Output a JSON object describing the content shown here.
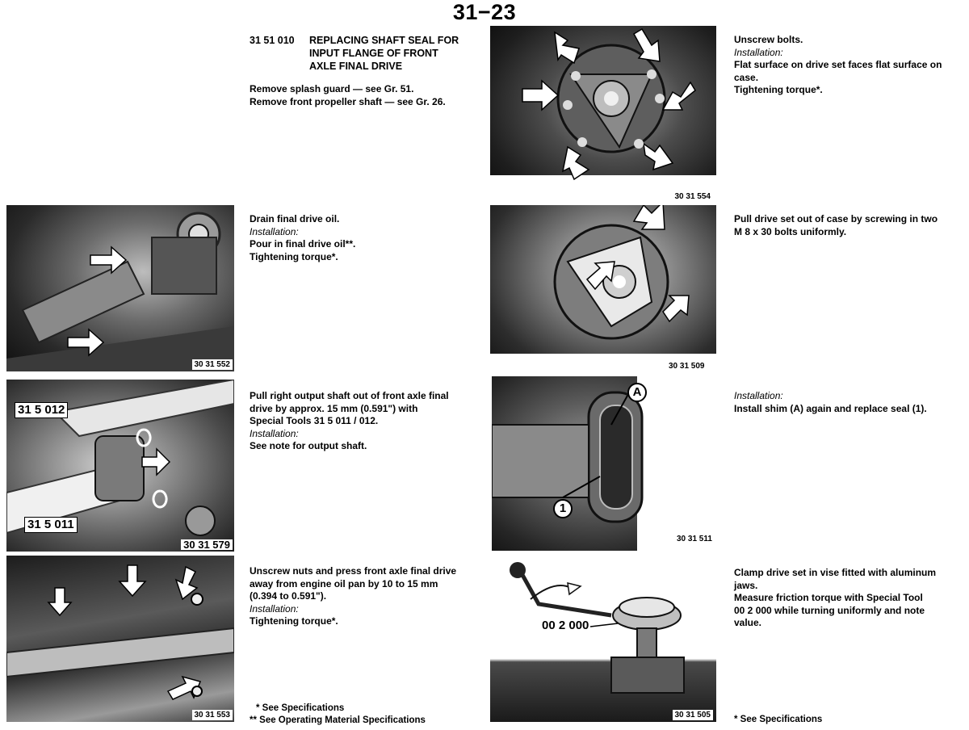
{
  "page_number": "31−23",
  "heading": {
    "code": "31 51 010",
    "title_lines": [
      "REPLACING SHAFT SEAL FOR",
      "INPUT FLANGE OF FRONT",
      "AXLE FINAL DRIVE"
    ]
  },
  "intro": {
    "lines": [
      "Remove splash guard — see Gr. 51.",
      "Remove front propeller shaft — see Gr. 26."
    ]
  },
  "steps_left": [
    {
      "figure": "30 31 552",
      "lines": [
        {
          "text": "Drain final drive oil.",
          "italic": false
        },
        {
          "text": "Installation:",
          "italic": true
        },
        {
          "text": "Pour in final drive oil**.",
          "italic": false
        },
        {
          "text": "Tightening torque*.",
          "italic": false
        }
      ]
    },
    {
      "figure": "30 31 579",
      "callouts": [
        "31 5 012",
        "31 5 011"
      ],
      "lines": [
        {
          "text": "Pull right output shaft out of front axle final",
          "italic": false
        },
        {
          "text": "drive by approx. 15 mm (0.591\") with",
          "italic": false
        },
        {
          "text": "Special Tools 31 5 011 / 012.",
          "italic": false
        },
        {
          "text": "Installation:",
          "italic": true
        },
        {
          "text": "See note for output shaft.",
          "italic": false
        }
      ]
    },
    {
      "figure": "30 31 553",
      "lines": [
        {
          "text": "Unscrew nuts and press front axle final drive",
          "italic": false
        },
        {
          "text": "away from engine oil pan by 10 to 15 mm",
          "italic": false
        },
        {
          "text": "(0.394 to 0.591\").",
          "italic": false
        },
        {
          "text": "Installation:",
          "italic": true
        },
        {
          "text": "Tightening torque*.",
          "italic": false
        }
      ]
    }
  ],
  "steps_right": [
    {
      "figure": "30 31 554",
      "lines": [
        {
          "text": "Unscrew bolts.",
          "italic": false
        },
        {
          "text": "Installation:",
          "italic": true
        },
        {
          "text": "Flat surface on drive set faces flat surface on",
          "italic": false
        },
        {
          "text": "case.",
          "italic": false
        },
        {
          "text": "Tightening torque*.",
          "italic": false
        }
      ]
    },
    {
      "figure": "30 31 509",
      "lines": [
        {
          "text": "Pull drive set out of case by screwing in two",
          "italic": false
        },
        {
          "text": "M 8 x 30 bolts uniformly.",
          "italic": false
        }
      ]
    },
    {
      "figure": "30 31 511",
      "callouts": [
        "A",
        "1"
      ],
      "lines": [
        {
          "text": "Installation:",
          "italic": true
        },
        {
          "text": "Install shim (A) again and replace seal (1).",
          "italic": false
        }
      ]
    },
    {
      "figure": "30 31 505",
      "callouts": [
        "00 2 000"
      ],
      "lines": [
        {
          "text": "Clamp drive set in vise fitted with aluminum",
          "italic": false
        },
        {
          "text": "jaws.",
          "italic": false
        },
        {
          "text": "Measure friction torque with Special Tool",
          "italic": false
        },
        {
          "text": "00 2 000 while turning uniformly and note",
          "italic": false
        },
        {
          "text": "value.",
          "italic": false
        }
      ]
    }
  ],
  "footnotes_left": [
    "* See Specifications",
    "** See Operating Material Specifications"
  ],
  "footnote_right": "* See Specifications"
}
